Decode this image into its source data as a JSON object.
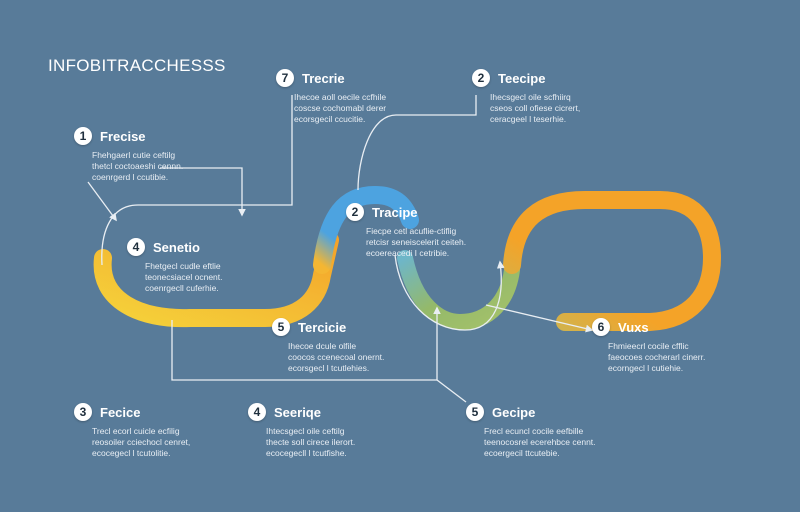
{
  "title": "INFOBITRACCHESSS",
  "colors": {
    "background": "#587b99",
    "blue": "#4da3e0",
    "yellow": "#f2c12e",
    "orange": "#f4a328",
    "green": "#94b96a",
    "connector": "#e9eef3"
  },
  "steps": [
    {
      "id": "s1",
      "number": "1",
      "title": "Frecise",
      "desc": [
        "Fhehgaerl cutie ceftilg",
        "thetcl coctoaeshi cennn.",
        "coenrgerd l ccutibie."
      ]
    },
    {
      "id": "s7",
      "number": "7",
      "title": "Trecrie",
      "desc": [
        "Ihecoe aoll oecile ccfhile",
        "coscse cochomabl derer",
        "ecorsgecil ccucitie."
      ]
    },
    {
      "id": "s2a",
      "number": "2",
      "title": "Teecipe",
      "desc": [
        "Ihecsgecl oile scfhiirq",
        "cseos coll ofiese cicrert,",
        "ceracgeel l teserhie."
      ]
    },
    {
      "id": "s4a",
      "number": "4",
      "title": "Senetio",
      "desc": [
        "Fhetgecl cudle eftlie",
        "teonecsiacel ocnent.",
        "coenrgecll cuferhie."
      ]
    },
    {
      "id": "s2b",
      "number": "2",
      "title": "Tracipe",
      "desc": [
        "Fiecpe cetl acuflie-ctiflig",
        "retcisr seneiscelerit ceiteh.",
        "ecoereacedi I cetribie."
      ]
    },
    {
      "id": "s5",
      "number": "5",
      "title": "Tercicie",
      "desc": [
        "Ihecoe dcule olfile",
        "coocos ccenecoal onernt.",
        "ecorsgecl l tcutlehies."
      ]
    },
    {
      "id": "s6",
      "number": "6",
      "title": "Vuxs",
      "desc": [
        "Fhmieecrl cocile cfflic",
        "faeocoes cocherarl cinerr.",
        "ecorngecl l cutiehie."
      ]
    },
    {
      "id": "s3",
      "number": "3",
      "title": "Fecice",
      "desc": [
        "Trecl ecorl cuicle ecfilig",
        "reosoiler cciechocl cenret,",
        "ecocegecl l tcutolitie."
      ]
    },
    {
      "id": "s4b",
      "number": "4",
      "title": "Seeriqe",
      "desc": [
        "Ihtecsgecl oile ceftilg",
        "thecte soll cirece ilerort.",
        "ecocegecll l tcutfishe."
      ]
    },
    {
      "id": "s5b",
      "number": "5",
      "title": "Gecipe",
      "desc": [
        "Frecl ecuncl cocile eefbille",
        "teenocosrel ecerehbce cennt.",
        "ecoergecil ttcutebie."
      ]
    }
  ]
}
